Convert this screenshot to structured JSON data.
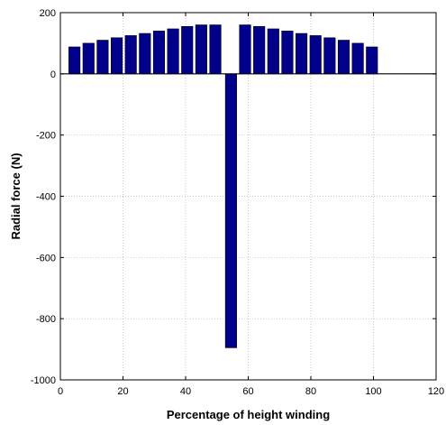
{
  "chart_data": {
    "type": "bar",
    "title": "",
    "xlabel": "Percentage of height winding",
    "ylabel": "Radial force (N)",
    "xlim": [
      0,
      120
    ],
    "ylim": [
      -1000,
      200
    ],
    "xticks": [
      0,
      20,
      40,
      60,
      80,
      100,
      120
    ],
    "yticks": [
      -1000,
      -800,
      -600,
      -400,
      -200,
      0,
      200
    ],
    "grid": true,
    "bar_color": "#00008B",
    "x": [
      4.5,
      9,
      13.5,
      18,
      22.5,
      27,
      31.5,
      36,
      40.5,
      45,
      49.5,
      54.5,
      59,
      63.5,
      68,
      72.5,
      77,
      81.5,
      86,
      90.5,
      95,
      99.5
    ],
    "values": [
      88,
      100,
      110,
      118,
      125,
      132,
      140,
      147,
      155,
      160,
      160,
      -895,
      160,
      155,
      147,
      140,
      132,
      125,
      118,
      110,
      100,
      88
    ]
  }
}
